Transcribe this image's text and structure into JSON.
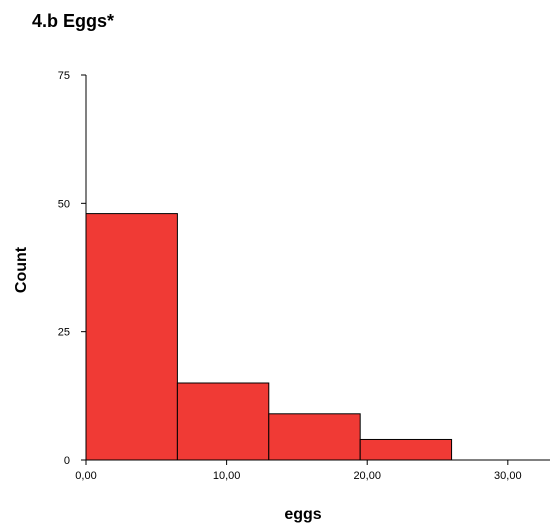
{
  "chart_data": {
    "type": "bar",
    "title": "4.b Eggs*",
    "xlabel": "eggs",
    "ylabel": "Count",
    "xlim": [
      0,
      33
    ],
    "ylim": [
      0,
      75
    ],
    "x_ticks": [
      0,
      10,
      20,
      30
    ],
    "x_tick_labels": [
      "0,00",
      "10,00",
      "20,00",
      "30,00"
    ],
    "y_ticks": [
      0,
      25,
      50,
      75
    ],
    "y_tick_labels": [
      "0",
      "25",
      "50",
      "75"
    ],
    "grid": false,
    "bins": [
      {
        "x0": 0.0,
        "x1": 6.5,
        "count": 48
      },
      {
        "x0": 6.5,
        "x1": 13.0,
        "count": 15
      },
      {
        "x0": 13.0,
        "x1": 19.5,
        "count": 9
      },
      {
        "x0": 19.5,
        "x1": 26.0,
        "count": 4
      }
    ],
    "colors": {
      "bar_fill": "#f03a35",
      "bar_stroke": "#000000",
      "axis": "#000000"
    }
  }
}
